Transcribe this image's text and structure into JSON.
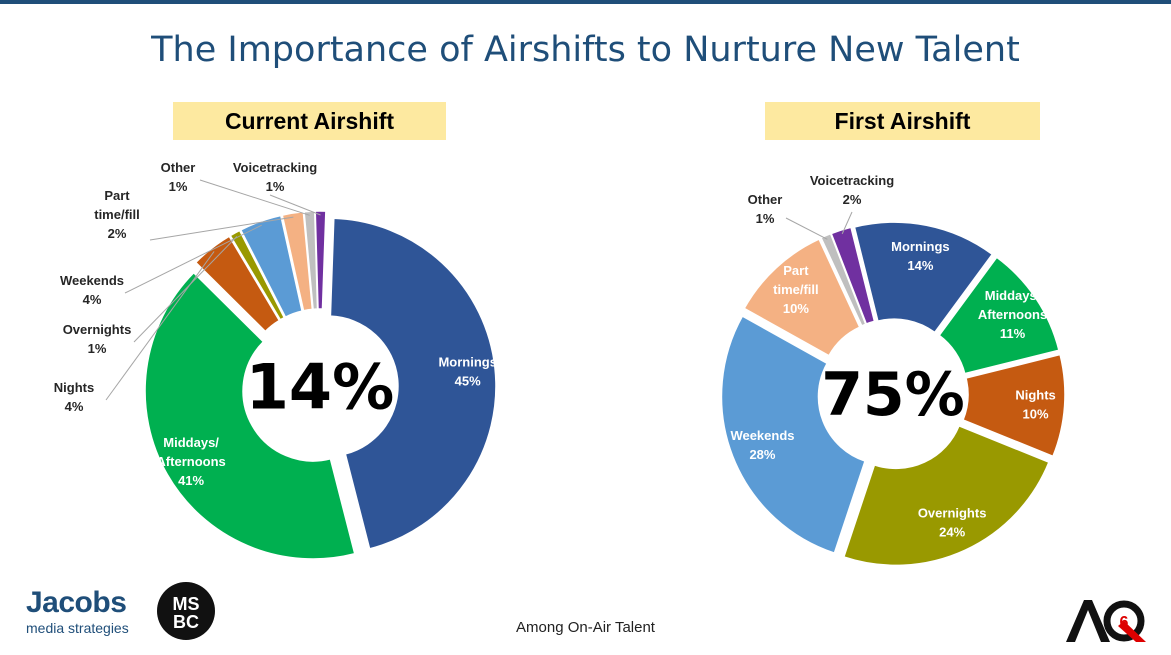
{
  "title": "The Importance of Airshifts to Nurture New Talent",
  "footer": "Among On-Air Talent",
  "logos": {
    "jacobs_brand": "Jacobs",
    "jacobs_tag": "media strategies",
    "msbc": "MSBC",
    "aq": "AQ6"
  },
  "chart_data": [
    {
      "type": "pie",
      "title": "Current Airshift",
      "center_label": "14%",
      "slices": [
        {
          "label": "Mornings",
          "value": 45,
          "value_label": "45%",
          "color": "#2f5597"
        },
        {
          "label": "Middays/ Afternoons",
          "value": 41,
          "value_label": "41%",
          "color": "#00b050"
        },
        {
          "label": "Nights",
          "value": 4,
          "value_label": "4%",
          "color": "#c55a11"
        },
        {
          "label": "Overnights",
          "value": 1,
          "value_label": "1%",
          "color": "#999900"
        },
        {
          "label": "Weekends",
          "value": 4,
          "value_label": "4%",
          "color": "#5b9bd5"
        },
        {
          "label": "Part time/fill",
          "value": 2,
          "value_label": "2%",
          "color": "#f4b183"
        },
        {
          "label": "Other",
          "value": 1,
          "value_label": "1%",
          "color": "#bfbfbf"
        },
        {
          "label": "Voicetracking",
          "value": 1,
          "value_label": "1%",
          "color": "#7030a0"
        }
      ]
    },
    {
      "type": "pie",
      "title": "First Airshift",
      "center_label": "75%",
      "slices": [
        {
          "label": "Mornings",
          "value": 14,
          "value_label": "14%",
          "color": "#2f5597"
        },
        {
          "label": "Middays/ Afternoons",
          "value": 11,
          "value_label": "11%",
          "color": "#00b050"
        },
        {
          "label": "Nights",
          "value": 10,
          "value_label": "10%",
          "color": "#c55a11"
        },
        {
          "label": "Overnights",
          "value": 24,
          "value_label": "24%",
          "color": "#999900"
        },
        {
          "label": "Weekends",
          "value": 28,
          "value_label": "28%",
          "color": "#5b9bd5"
        },
        {
          "label": "Part time/fill",
          "value": 10,
          "value_label": "10%",
          "color": "#f4b183"
        },
        {
          "label": "Other",
          "value": 1,
          "value_label": "1%",
          "color": "#bfbfbf"
        },
        {
          "label": "Voicetracking",
          "value": 2,
          "value_label": "2%",
          "color": "#7030a0"
        }
      ]
    }
  ]
}
